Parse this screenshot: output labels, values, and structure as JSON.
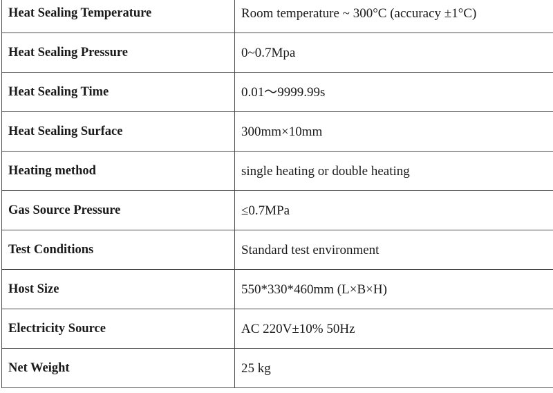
{
  "specs": {
    "rows": [
      {
        "parameter": "Heat Sealing Temperature",
        "value": "Room temperature ~ 300°C (accuracy ±1°C)"
      },
      {
        "parameter": "Heat Sealing Pressure",
        "value": "0~0.7Mpa"
      },
      {
        "parameter": "Heat Sealing Time",
        "value": "0.01～9999.99s"
      },
      {
        "parameter": "Heat Sealing Surface",
        "value": "300mm×10mm"
      },
      {
        "parameter": "Heating method",
        "value": "single heating or double heating"
      },
      {
        "parameter": "Gas Source Pressure",
        "value": "≤0.7MPa"
      },
      {
        "parameter": "Test Conditions",
        "value": "Standard test environment"
      },
      {
        "parameter": "Host Size",
        "value": "550*330*460mm (L×B×H)"
      },
      {
        "parameter": "Electricity Source",
        "value": "AC 220V±10% 50Hz"
      },
      {
        "parameter": "Net Weight",
        "value": "25 kg"
      }
    ]
  }
}
